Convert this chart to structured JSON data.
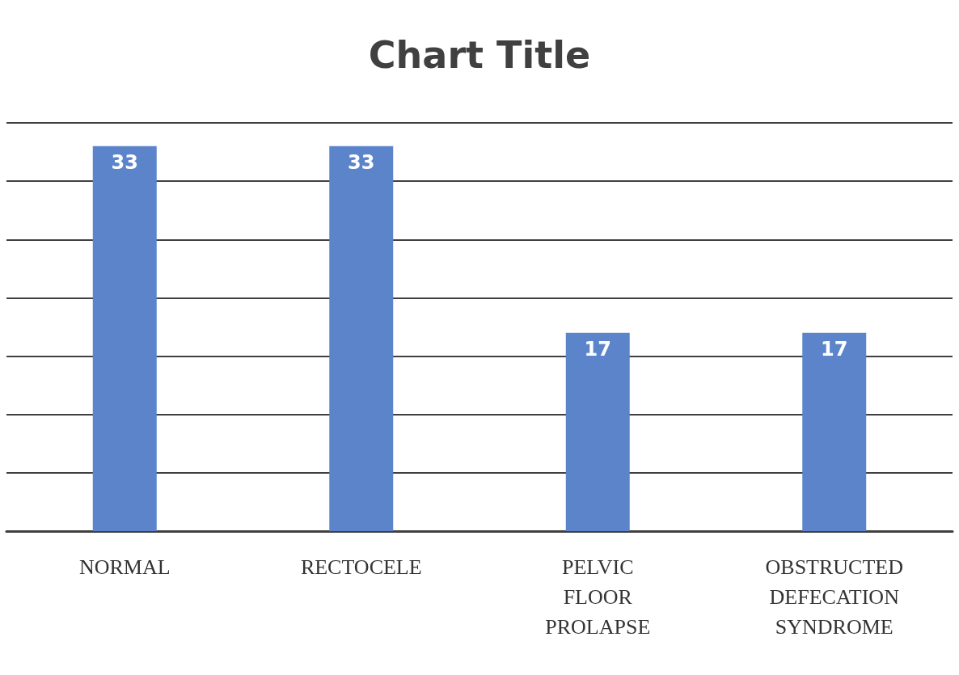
{
  "chart_data": {
    "type": "bar",
    "title": "Chart Title",
    "categories": [
      "NORMAL",
      "RECTOCELE",
      "PELVIC FLOOR PROLAPSE",
      "OBSTRUCTED DEFECATION SYNDROME"
    ],
    "values": [
      33,
      33,
      17,
      17
    ],
    "color": "#5b84cb",
    "ylim": [
      0,
      35
    ],
    "yticks": [
      0,
      5,
      10,
      15,
      20,
      25,
      30,
      35
    ],
    "grid": "y",
    "tick_labels": "x",
    "data_labels": true
  }
}
